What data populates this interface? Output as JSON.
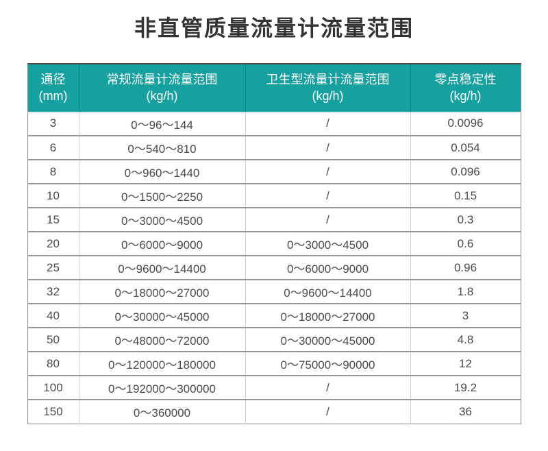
{
  "colors": {
    "header_bg": "#16A0A0",
    "header_text": "#ffffff",
    "title_text": "#333333",
    "body_text": "#4a4a4a",
    "row_border": "#949494",
    "col_border": "#cccccc",
    "outer_border": "#8a8a8a",
    "header_top_border": "#474747"
  },
  "chart_data": {
    "type": "table",
    "title": "非直管质量流量计流量范围",
    "columns": [
      {
        "label": "通径",
        "unit": "(mm)"
      },
      {
        "label": "常规流量计流量范围",
        "unit": "(kg/h)"
      },
      {
        "label": "卫生型流量计流量范围",
        "unit": "(kg/h)"
      },
      {
        "label": "零点稳定性",
        "unit": "(kg/h)"
      }
    ],
    "rows": [
      [
        "3",
        "0～96～144",
        "/",
        "0.0096"
      ],
      [
        "6",
        "0～540～810",
        "/",
        "0.054"
      ],
      [
        "8",
        "0～960～1440",
        "/",
        "0.096"
      ],
      [
        "10",
        "0～1500～2250",
        "/",
        "0.15"
      ],
      [
        "15",
        "0～3000～4500",
        "/",
        "0.3"
      ],
      [
        "20",
        "0～6000～9000",
        "0～3000～4500",
        "0.6"
      ],
      [
        "25",
        "0～9600～14400",
        "0～6000～9000",
        "0.96"
      ],
      [
        "32",
        "0～18000～27000",
        "0～9600～14400",
        "1.8"
      ],
      [
        "40",
        "0～30000～45000",
        "0～18000～27000",
        "3"
      ],
      [
        "50",
        "0～48000～72000",
        "0～30000～45000",
        "4.8"
      ],
      [
        "80",
        "0～120000～180000",
        "0～75000～90000",
        "12"
      ],
      [
        "100",
        "0～192000～300000",
        "/",
        "19.2"
      ],
      [
        "150",
        "0～360000",
        "/",
        "36"
      ]
    ]
  }
}
